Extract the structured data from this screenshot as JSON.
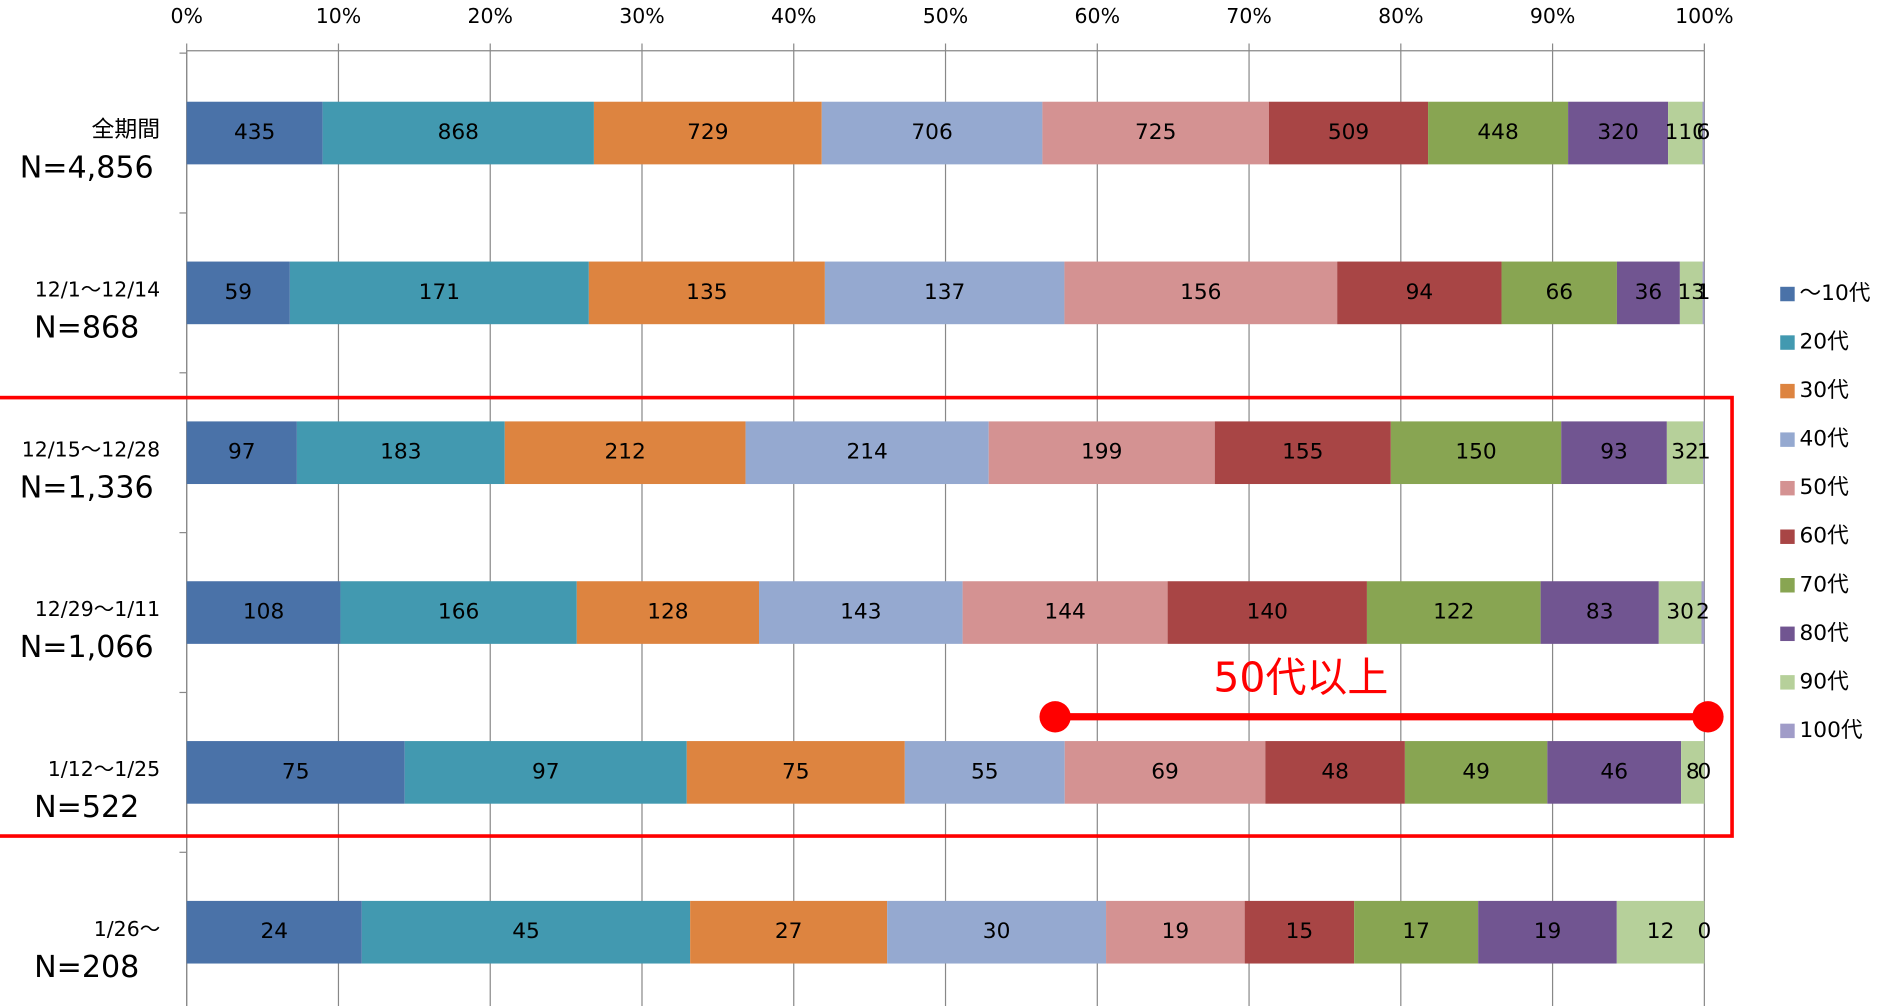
{
  "chart_data": {
    "type": "stacked-bar-100",
    "categories": [
      "全期間",
      "12/1〜12/14",
      "12/15〜12/28",
      "12/29〜1/11",
      "1/12〜1/25",
      "1/26〜"
    ],
    "category_counts": [
      "N=4,856",
      "N=868",
      "N=1,336",
      "N=1,066",
      "N=522",
      "N=208"
    ],
    "xlim": [
      0,
      100
    ],
    "xticks": [
      {
        "value": 0,
        "label": "0%"
      },
      {
        "value": 10,
        "label": "10%"
      },
      {
        "value": 20,
        "label": "20%"
      },
      {
        "value": 30,
        "label": "30%"
      },
      {
        "value": 40,
        "label": "40%"
      },
      {
        "value": 50,
        "label": "50%"
      },
      {
        "value": 60,
        "label": "60%"
      },
      {
        "value": 70,
        "label": "70%"
      },
      {
        "value": 80,
        "label": "80%"
      },
      {
        "value": 90,
        "label": "90%"
      },
      {
        "value": 100,
        "label": "100%"
      }
    ],
    "grid": true,
    "legend": "right",
    "series": [
      {
        "name": "〜10代",
        "color": "#4a72a8",
        "values": [
          435,
          59,
          97,
          108,
          75,
          24
        ]
      },
      {
        "name": "20代",
        "color": "#4299b0",
        "values": [
          868,
          171,
          183,
          166,
          97,
          45
        ]
      },
      {
        "name": "30代",
        "color": "#dd8440",
        "values": [
          729,
          135,
          212,
          128,
          75,
          27
        ]
      },
      {
        "name": "40代",
        "color": "#95a9d0",
        "values": [
          706,
          137,
          214,
          143,
          55,
          30
        ]
      },
      {
        "name": "50代",
        "color": "#d49292",
        "values": [
          725,
          156,
          199,
          144,
          69,
          19
        ]
      },
      {
        "name": "60代",
        "color": "#a84545",
        "values": [
          509,
          94,
          155,
          140,
          48,
          15
        ]
      },
      {
        "name": "70代",
        "color": "#88a552",
        "values": [
          448,
          66,
          150,
          122,
          49,
          17
        ]
      },
      {
        "name": "80代",
        "color": "#715591",
        "values": [
          320,
          36,
          93,
          83,
          46,
          19
        ]
      },
      {
        "name": "90代",
        "color": "#b6d09a",
        "values": [
          110,
          13,
          32,
          30,
          8,
          12
        ]
      },
      {
        "name": "100代",
        "color": "#a09cc8",
        "values": [
          6,
          1,
          1,
          2,
          0,
          0
        ]
      }
    ],
    "annotation": "50代以上"
  }
}
